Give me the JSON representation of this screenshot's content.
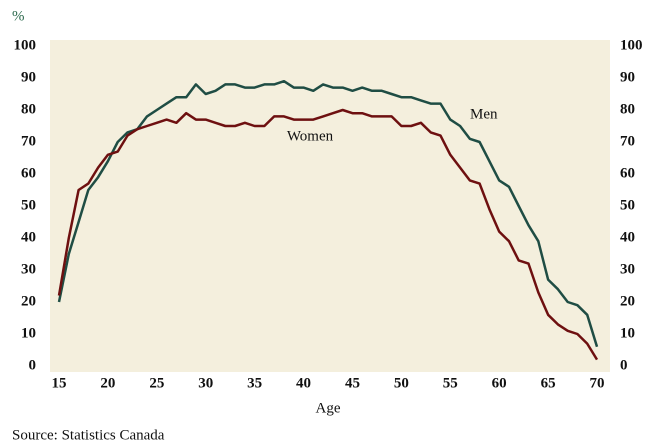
{
  "chart_data": {
    "type": "line",
    "ylabel": "%",
    "xlabel": "Age",
    "source": "Source: Statistics Canada",
    "x": [
      15,
      16,
      17,
      18,
      19,
      20,
      21,
      22,
      23,
      24,
      25,
      26,
      27,
      28,
      29,
      30,
      31,
      32,
      33,
      34,
      35,
      36,
      37,
      38,
      39,
      40,
      41,
      42,
      43,
      44,
      45,
      46,
      47,
      48,
      49,
      50,
      51,
      52,
      53,
      54,
      55,
      56,
      57,
      58,
      59,
      60,
      61,
      62,
      63,
      64,
      65,
      66,
      67,
      68,
      69,
      70
    ],
    "series": [
      {
        "name": "Men",
        "color": "#1f4d44",
        "values": [
          20,
          35,
          45,
          55,
          59,
          64,
          70,
          73,
          74,
          78,
          80,
          82,
          84,
          84,
          88,
          85,
          86,
          88,
          88,
          87,
          87,
          88,
          88,
          89,
          87,
          87,
          86,
          88,
          87,
          87,
          86,
          87,
          86,
          86,
          85,
          84,
          84,
          83,
          82,
          82,
          77,
          75,
          71,
          70,
          64,
          58,
          56,
          50,
          44,
          39,
          27,
          24,
          20,
          19,
          16,
          6
        ]
      },
      {
        "name": "Women",
        "color": "#6e1010",
        "values": [
          22,
          40,
          55,
          57,
          62,
          66,
          67,
          72,
          74,
          75,
          76,
          77,
          76,
          79,
          77,
          77,
          76,
          75,
          75,
          76,
          75,
          75,
          78,
          78,
          77,
          77,
          77,
          78,
          79,
          80,
          79,
          79,
          78,
          78,
          78,
          75,
          75,
          76,
          73,
          72,
          66,
          62,
          58,
          57,
          49,
          42,
          39,
          33,
          32,
          23,
          16,
          13,
          11,
          10,
          7,
          2
        ]
      }
    ],
    "xlim": [
      15,
      70
    ],
    "xticks": [
      15,
      20,
      25,
      30,
      35,
      40,
      45,
      50,
      55,
      60,
      65,
      70
    ],
    "ylim": [
      0,
      100
    ],
    "yticks": [
      0,
      10,
      20,
      30,
      40,
      50,
      60,
      70,
      80,
      90,
      100
    ],
    "y2lim": [
      0,
      100
    ],
    "y2ticks": [
      0,
      10,
      20,
      30,
      40,
      50,
      60,
      70,
      80,
      90,
      100
    ]
  }
}
